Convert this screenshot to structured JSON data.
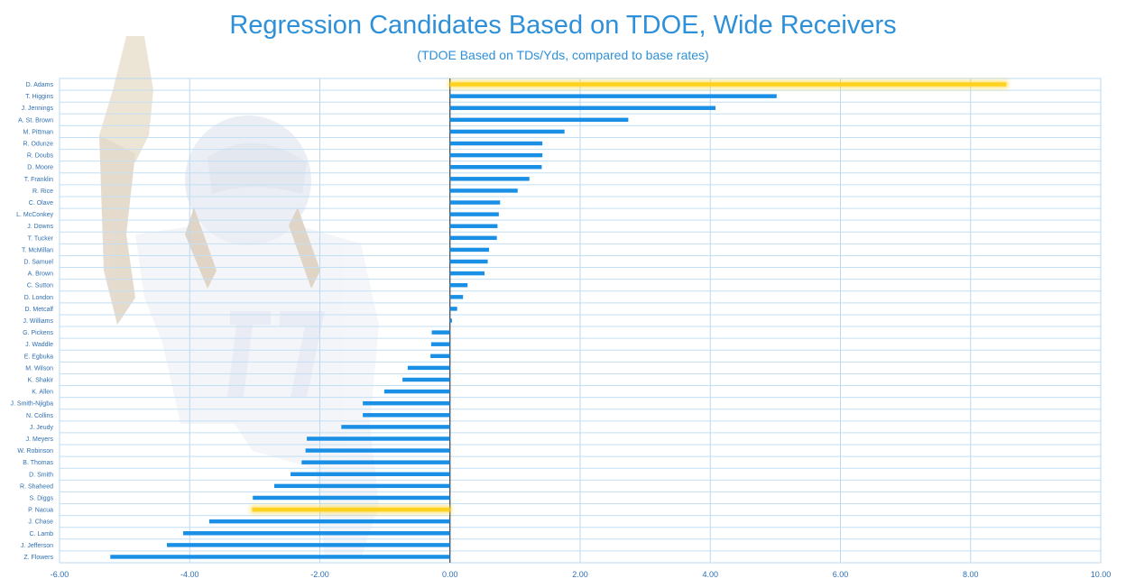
{
  "chart_data": {
    "type": "bar",
    "orientation": "horizontal",
    "title": "Regression Candidates Based on TDOE, Wide Receivers",
    "subtitle": "(TDOE Based on TDs/Yds, compared to base rates)",
    "xlabel": "",
    "ylabel": "",
    "xlim": [
      -6,
      10
    ],
    "x_ticks": [
      "-6.00",
      "-4.00",
      "-2.00",
      "0.00",
      "2.00",
      "4.00",
      "6.00",
      "8.00",
      "10.00"
    ],
    "grid": true,
    "bar_color": "#1a8fe6",
    "highlight_color": "#ffd21f",
    "highlighted": [
      "D. Adams",
      "P. Nacua"
    ],
    "categories": [
      "D. Adams",
      "T. Higgins",
      "J. Jennings",
      "A. St. Brown",
      "M. Pittman",
      "R. Odunze",
      "R. Doubs",
      "D. Moore",
      "T. Franklin",
      "R. Rice",
      "C. Olave",
      "L. McConkey",
      "J. Downs",
      "T. Tucker",
      "T. McMillan",
      "D. Samuel",
      "A. Brown",
      "C. Sutton",
      "D. London",
      "D. Metcalf",
      "J. Williams",
      "G. Pickens",
      "J. Waddle",
      "E. Egbuka",
      "M. Wilson",
      "K. Shakir",
      "K. Allen",
      "J. Smith-Njigba",
      "N. Collins",
      "J. Jeudy",
      "J. Meyers",
      "W. Robinson",
      "B. Thomas",
      "D. Smith",
      "R. Shaheed",
      "S. Diggs",
      "P. Nacua",
      "J. Chase",
      "C. Lamb",
      "J. Jefferson",
      "Z. Flowers"
    ],
    "values": [
      8.55,
      5.02,
      4.08,
      2.74,
      1.76,
      1.42,
      1.42,
      1.41,
      1.22,
      1.04,
      0.77,
      0.75,
      0.73,
      0.72,
      0.6,
      0.58,
      0.53,
      0.27,
      0.2,
      0.11,
      0.03,
      -0.28,
      -0.29,
      -0.3,
      -0.65,
      -0.73,
      -1.01,
      -1.34,
      -1.34,
      -1.67,
      -2.2,
      -2.22,
      -2.28,
      -2.45,
      -2.7,
      -3.03,
      -3.04,
      -3.7,
      -4.1,
      -4.35,
      -5.22
    ]
  }
}
